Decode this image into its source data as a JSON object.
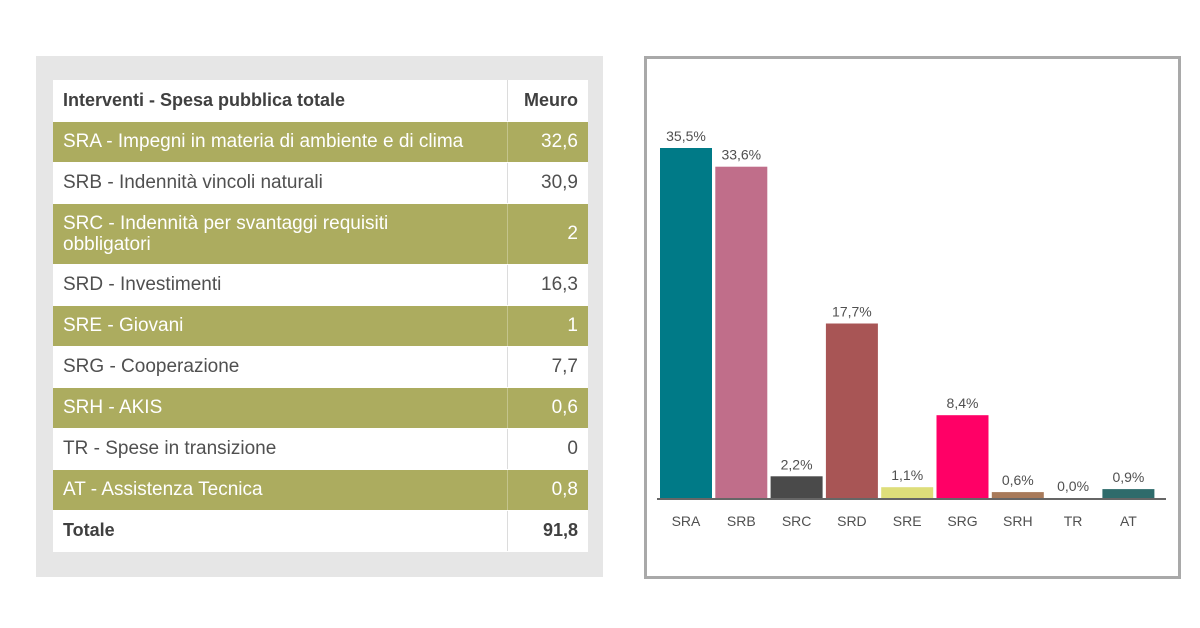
{
  "table": {
    "header_label": "Interventi - Spesa pubblica totale",
    "header_value": "Meuro",
    "rows": [
      {
        "label": "SRA - Impegni in materia di ambiente e di clima",
        "value": "32,6",
        "style": "green"
      },
      {
        "label": "SRB - Indennità vincoli naturali",
        "value": "30,9",
        "style": "white"
      },
      {
        "label_line1": "SRC - Indennità per svantaggi requisiti",
        "label_line2": "obbligatori",
        "value": "2",
        "style": "green"
      },
      {
        "label": "SRD - Investimenti",
        "value": "16,3",
        "style": "white"
      },
      {
        "label": "SRE - Giovani",
        "value": "1",
        "style": "green"
      },
      {
        "label": "SRG - Cooperazione",
        "value": "7,7",
        "style": "white"
      },
      {
        "label": "SRH - AKIS",
        "value": "0,6",
        "style": "green"
      },
      {
        "label": "TR - Spese in transizione",
        "value": "0",
        "style": "white"
      },
      {
        "label": "AT - Assistenza Tecnica",
        "value": "0,8",
        "style": "green"
      }
    ],
    "total_label": "Totale",
    "total_value": "91,8",
    "colors": {
      "green": "#acac5f",
      "white": "#ffffff",
      "panel": "#e6e6e6"
    }
  },
  "chart_data": {
    "type": "bar",
    "categories": [
      "SRA",
      "SRB",
      "SRC",
      "SRD",
      "SRE",
      "SRG",
      "SRH",
      "TR",
      "AT"
    ],
    "values": [
      35.5,
      33.6,
      2.2,
      17.7,
      1.1,
      8.4,
      0.6,
      0.0,
      0.9
    ],
    "value_labels": [
      "35,5%",
      "33,6%",
      "2,2%",
      "17,7%",
      "1,1%",
      "8,4%",
      "0,6%",
      "0,0%",
      "0,9%"
    ],
    "colors": [
      "#007a87",
      "#c06e8a",
      "#4a4a4a",
      "#a85555",
      "#dede7a",
      "#ff0066",
      "#a87a5a",
      "#777777",
      "#2e6b6b"
    ],
    "ylim": [
      0,
      35.5
    ],
    "grid": false,
    "legend": "none"
  }
}
